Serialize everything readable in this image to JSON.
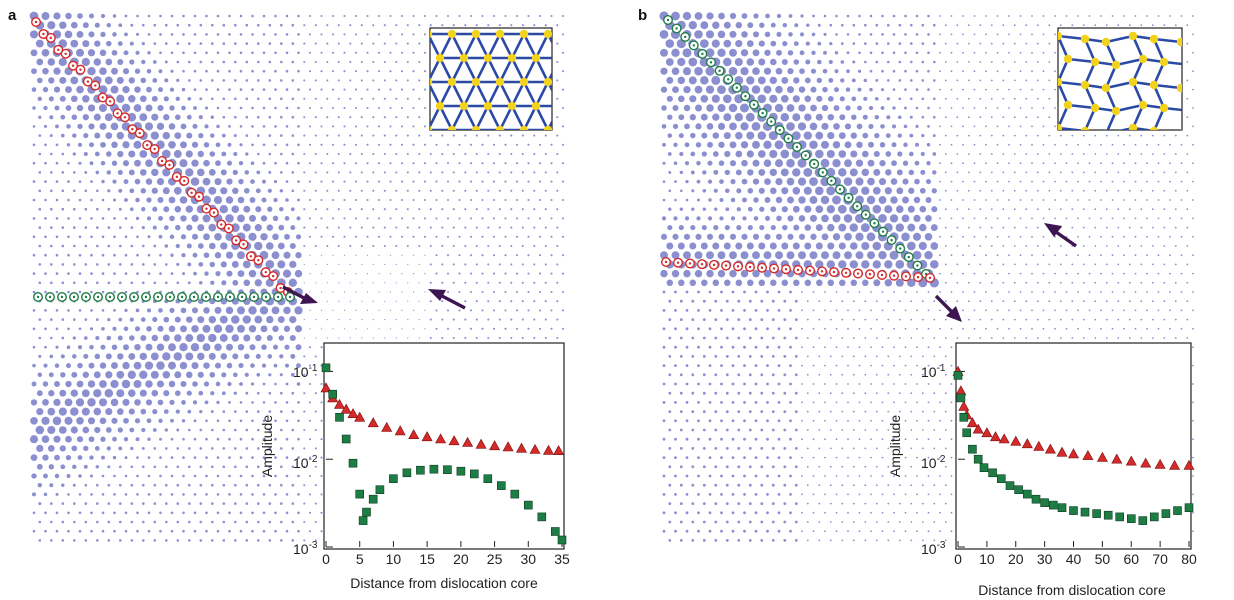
{
  "figure": {
    "panels": [
      {
        "label": "a",
        "inset_chart": {
          "xlabel": "Distance from dislocation core",
          "ylabel": "Amplitude",
          "x_ticks": [
            "0",
            "5",
            "10",
            "15",
            "20",
            "25",
            "30",
            "35"
          ],
          "y_ticks": [
            "10",
            "10",
            "10"
          ],
          "y_tick_exponents": [
            "-1",
            "-2",
            "-3"
          ]
        }
      },
      {
        "label": "b",
        "inset_chart": {
          "xlabel": "Distance from dislocation core",
          "ylabel": "Amplitude",
          "x_ticks": [
            "0",
            "10",
            "20",
            "30",
            "40",
            "50",
            "60",
            "70",
            "80"
          ],
          "y_ticks": [
            "10",
            "10",
            "10"
          ],
          "y_tick_exponents": [
            "-1",
            "-2",
            "-3"
          ]
        }
      }
    ],
    "colors": {
      "lattice_dots": "#8c8fcf",
      "red_markers": "#d42a2a",
      "green_markers": "#1e7d45",
      "arrow": "#3d1550",
      "network_lines": "#2b4aa6",
      "network_nodes": "#f2d21b"
    }
  },
  "chart_data": [
    {
      "type": "scatter",
      "xlabel": "Distance from dislocation core",
      "ylabel": "Amplitude",
      "xlim": [
        0,
        35
      ],
      "ylim": [
        0.001,
        0.2
      ],
      "yscale": "log",
      "series": [
        {
          "marker": "triangle",
          "color": "#d42a2a",
          "x": [
            0,
            1,
            2,
            3,
            4,
            5,
            7,
            9,
            11,
            13,
            15,
            17,
            19,
            21,
            23,
            25,
            27,
            29,
            31,
            33,
            34.5
          ],
          "y": [
            0.065,
            0.05,
            0.042,
            0.037,
            0.033,
            0.03,
            0.026,
            0.023,
            0.021,
            0.019,
            0.018,
            0.017,
            0.0162,
            0.0155,
            0.0148,
            0.0142,
            0.0138,
            0.0133,
            0.0129,
            0.0126,
            0.0125
          ]
        },
        {
          "marker": "square",
          "color": "#1e7d45",
          "x": [
            0,
            1,
            2,
            3,
            4,
            5,
            5.5,
            6,
            7,
            8,
            10,
            12,
            14,
            16,
            18,
            20,
            22,
            24,
            26,
            28,
            30,
            32,
            34,
            35
          ],
          "y": [
            0.11,
            0.055,
            0.03,
            0.017,
            0.009,
            0.004,
            0.002,
            0.0025,
            0.0035,
            0.0045,
            0.006,
            0.007,
            0.0075,
            0.0077,
            0.0076,
            0.0073,
            0.0068,
            0.006,
            0.005,
            0.004,
            0.003,
            0.0022,
            0.0015,
            0.0012
          ]
        }
      ]
    },
    {
      "type": "scatter",
      "xlabel": "Distance from dislocation core",
      "ylabel": "Amplitude",
      "xlim": [
        0,
        80
      ],
      "ylim": [
        0.001,
        0.2
      ],
      "yscale": "log",
      "series": [
        {
          "marker": "triangle",
          "color": "#d42a2a",
          "x": [
            0,
            1,
            2,
            3,
            5,
            7,
            10,
            13,
            16,
            20,
            24,
            28,
            32,
            36,
            40,
            45,
            50,
            55,
            60,
            65,
            70,
            75,
            80
          ],
          "y": [
            0.1,
            0.06,
            0.04,
            0.032,
            0.026,
            0.022,
            0.02,
            0.018,
            0.017,
            0.016,
            0.015,
            0.014,
            0.013,
            0.012,
            0.0115,
            0.011,
            0.0105,
            0.01,
            0.0095,
            0.009,
            0.0087,
            0.0085,
            0.0085
          ]
        },
        {
          "marker": "square",
          "color": "#1e7d45",
          "x": [
            0,
            1,
            2,
            3,
            5,
            7,
            9,
            12,
            15,
            18,
            21,
            24,
            27,
            30,
            33,
            36,
            40,
            44,
            48,
            52,
            56,
            60,
            64,
            68,
            72,
            76,
            80
          ],
          "y": [
            0.09,
            0.05,
            0.03,
            0.02,
            0.013,
            0.01,
            0.008,
            0.007,
            0.006,
            0.005,
            0.0045,
            0.004,
            0.0035,
            0.0032,
            0.003,
            0.0028,
            0.0026,
            0.0025,
            0.0024,
            0.0023,
            0.0022,
            0.0021,
            0.002,
            0.0022,
            0.0024,
            0.0026,
            0.0028
          ]
        }
      ]
    }
  ]
}
